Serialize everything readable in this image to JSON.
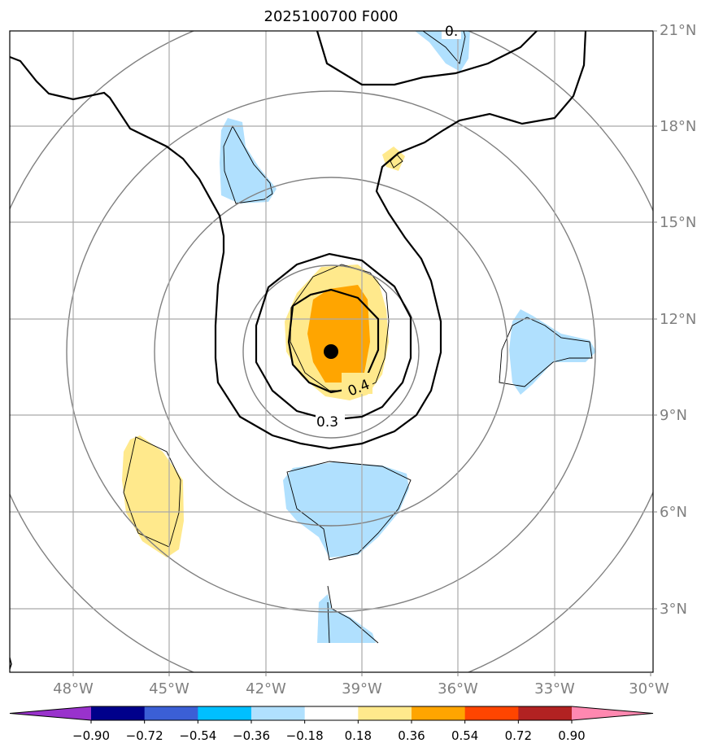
{
  "title": "2025100700 F000",
  "lon_labels": [
    "48°W",
    "45°W",
    "42°W",
    "39°W",
    "36°W",
    "33°W",
    "30°W"
  ],
  "lat_labels": [
    "21°N",
    "18°N",
    "15°N",
    "12°N",
    "9°N",
    "6°N",
    "3°N"
  ],
  "contour_labels": [
    "0.4",
    "0.3",
    "0."
  ],
  "colorbar": {
    "ticks": [
      "−0.90",
      "−0.72",
      "−0.54",
      "−0.36",
      "−0.18",
      "0.18",
      "0.36",
      "0.54",
      "0.72",
      "0.90"
    ],
    "colors": [
      "#9932cc",
      "#00008b",
      "#3b5fd6",
      "#00bfff",
      "#b0e0fe",
      "#ffffff",
      "#ffe98c",
      "#ffa500",
      "#ff4500",
      "#b22222",
      "#ff88b0"
    ]
  },
  "storm_center": {
    "lon": "40°W",
    "lat": "11°N"
  },
  "colors": {
    "grid": "#a9a9a9",
    "range_ring": "#808080",
    "contour": "#000000",
    "tick_label": "#808080"
  }
}
